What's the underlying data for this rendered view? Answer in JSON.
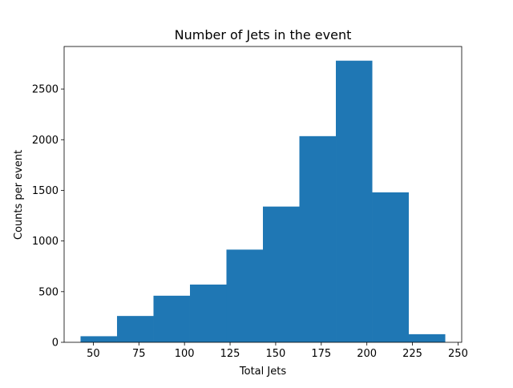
{
  "chart_data": {
    "type": "bar",
    "title": "Number of Jets in the event",
    "xlabel": "Total Jets",
    "ylabel": "Counts per event",
    "bar_color": "#1f77b4",
    "bin_edges": [
      43,
      63,
      83,
      103,
      123,
      143,
      163,
      183,
      203,
      223,
      243
    ],
    "values": [
      60,
      260,
      460,
      570,
      915,
      1340,
      2035,
      2780,
      1480,
      80
    ],
    "xlim": [
      34,
      252
    ],
    "ylim": [
      0,
      2920
    ],
    "x_ticks": [
      50,
      75,
      100,
      125,
      150,
      175,
      200,
      225,
      250
    ],
    "y_ticks": [
      0,
      500,
      1000,
      1500,
      2000,
      2500
    ],
    "grid": false,
    "legend": "none"
  }
}
